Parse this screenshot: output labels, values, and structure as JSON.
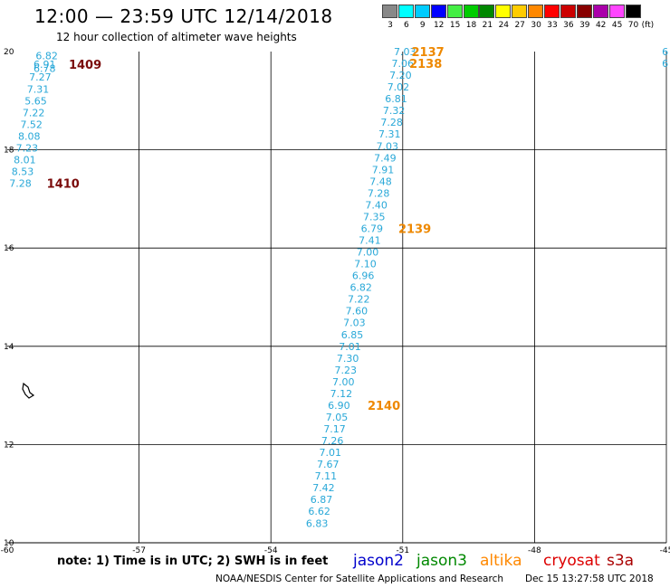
{
  "header": {
    "title": "12:00 — 23:59 UTC 12/14/2018",
    "subtitle": "12 hour collection of altimeter wave heights"
  },
  "color_scale": {
    "unit": "(ft)",
    "bins": [
      {
        "label": "3",
        "color": "#888888"
      },
      {
        "label": "6",
        "color": "#00ffff"
      },
      {
        "label": "9",
        "color": "#00ccff"
      },
      {
        "label": "12",
        "color": "#0000ff"
      },
      {
        "label": "15",
        "color": "#44ee44"
      },
      {
        "label": "18",
        "color": "#00cc00"
      },
      {
        "label": "21",
        "color": "#008800"
      },
      {
        "label": "24",
        "color": "#ffff00"
      },
      {
        "label": "27",
        "color": "#ffcc00"
      },
      {
        "label": "30",
        "color": "#ff8800"
      },
      {
        "label": "33",
        "color": "#ff0000"
      },
      {
        "label": "36",
        "color": "#cc0000"
      },
      {
        "label": "39",
        "color": "#880000"
      },
      {
        "label": "42",
        "color": "#aa00aa"
      },
      {
        "label": "45",
        "color": "#ff44ff"
      },
      {
        "label": "70",
        "color": "#000000"
      }
    ]
  },
  "map": {
    "lon_range": [
      -60,
      -45
    ],
    "lat_range": [
      10,
      20
    ],
    "lon_ticks": [
      "-60",
      "-57",
      "-54",
      "-51",
      "-48",
      "-45"
    ],
    "lat_ticks": [
      "20",
      "18",
      "16",
      "14",
      "12",
      "10"
    ],
    "grid_lons": [
      -57,
      -54,
      -51,
      -48,
      -45
    ],
    "grid_lats": [
      18,
      16,
      14,
      12
    ],
    "value_color": "#29a8d8",
    "tracks": [
      {
        "points": [
          {
            "lon": -59.1,
            "lat": 19.92,
            "v": "6.82"
          },
          {
            "lon": -59.15,
            "lat": 19.74,
            "v": "6.91"
          },
          {
            "lon": -59.15,
            "lat": 19.66,
            "v": "6.78"
          },
          {
            "lon": -59.25,
            "lat": 19.48,
            "v": "7.27"
          },
          {
            "lon": -59.3,
            "lat": 19.24,
            "v": "7.31"
          },
          {
            "lon": -59.35,
            "lat": 19.0,
            "v": "5.65"
          },
          {
            "lon": -59.4,
            "lat": 18.76,
            "v": "7.22"
          },
          {
            "lon": -59.45,
            "lat": 18.52,
            "v": "7.52"
          },
          {
            "lon": -59.5,
            "lat": 18.28,
            "v": "8.08"
          },
          {
            "lon": -59.55,
            "lat": 18.04,
            "v": "7.23"
          },
          {
            "lon": -59.6,
            "lat": 17.8,
            "v": "8.01"
          },
          {
            "lon": -59.65,
            "lat": 17.56,
            "v": "8.53"
          },
          {
            "lon": -59.7,
            "lat": 17.32,
            "v": "7.28"
          }
        ]
      },
      {
        "points": [
          {
            "lon": -50.95,
            "lat": 20.0,
            "v": "7.03"
          },
          {
            "lon": -51.0,
            "lat": 19.76,
            "v": "7.06"
          },
          {
            "lon": -51.05,
            "lat": 19.52,
            "v": "7.20"
          },
          {
            "lon": -51.1,
            "lat": 19.28,
            "v": "7.02"
          },
          {
            "lon": -51.15,
            "lat": 19.04,
            "v": "6.81"
          },
          {
            "lon": -51.2,
            "lat": 18.8,
            "v": "7.32"
          },
          {
            "lon": -51.25,
            "lat": 18.56,
            "v": "7.28"
          },
          {
            "lon": -51.3,
            "lat": 18.32,
            "v": "7.31"
          },
          {
            "lon": -51.35,
            "lat": 18.08,
            "v": "7.03"
          },
          {
            "lon": -51.4,
            "lat": 17.84,
            "v": "7.49"
          },
          {
            "lon": -51.45,
            "lat": 17.6,
            "v": "7.91"
          },
          {
            "lon": -51.5,
            "lat": 17.36,
            "v": "7.48"
          },
          {
            "lon": -51.55,
            "lat": 17.12,
            "v": "7.28"
          },
          {
            "lon": -51.6,
            "lat": 16.88,
            "v": "7.40"
          },
          {
            "lon": -51.65,
            "lat": 16.64,
            "v": "7.35"
          },
          {
            "lon": -51.7,
            "lat": 16.4,
            "v": "6.79"
          },
          {
            "lon": -51.75,
            "lat": 16.16,
            "v": "7.41"
          },
          {
            "lon": -51.8,
            "lat": 15.92,
            "v": "7.00"
          },
          {
            "lon": -51.85,
            "lat": 15.68,
            "v": "7.10"
          },
          {
            "lon": -51.9,
            "lat": 15.44,
            "v": "6.96"
          },
          {
            "lon": -51.95,
            "lat": 15.2,
            "v": "6.82"
          },
          {
            "lon": -52.0,
            "lat": 14.96,
            "v": "7.22"
          },
          {
            "lon": -52.05,
            "lat": 14.72,
            "v": "7.60"
          },
          {
            "lon": -52.1,
            "lat": 14.48,
            "v": "7.03"
          },
          {
            "lon": -52.15,
            "lat": 14.24,
            "v": "6.85"
          },
          {
            "lon": -52.2,
            "lat": 14.0,
            "v": "7.01"
          },
          {
            "lon": -52.25,
            "lat": 13.76,
            "v": "7.30"
          },
          {
            "lon": -52.3,
            "lat": 13.52,
            "v": "7.23"
          },
          {
            "lon": -52.35,
            "lat": 13.28,
            "v": "7.00"
          },
          {
            "lon": -52.4,
            "lat": 13.04,
            "v": "7.12"
          },
          {
            "lon": -52.45,
            "lat": 12.8,
            "v": "6.90"
          },
          {
            "lon": -52.5,
            "lat": 12.56,
            "v": "7.05"
          },
          {
            "lon": -52.55,
            "lat": 12.32,
            "v": "7.17"
          },
          {
            "lon": -52.6,
            "lat": 12.08,
            "v": "7.26"
          },
          {
            "lon": -52.65,
            "lat": 11.84,
            "v": "7.01"
          },
          {
            "lon": -52.7,
            "lat": 11.6,
            "v": "7.67"
          },
          {
            "lon": -52.75,
            "lat": 11.36,
            "v": "7.11"
          },
          {
            "lon": -52.8,
            "lat": 11.12,
            "v": "7.42"
          },
          {
            "lon": -52.85,
            "lat": 10.88,
            "v": "6.87"
          },
          {
            "lon": -52.9,
            "lat": 10.64,
            "v": "6.62"
          },
          {
            "lon": -52.95,
            "lat": 10.4,
            "v": "6.83"
          }
        ]
      }
    ],
    "pass_labels": [
      {
        "text": "1409",
        "lon": -58.6,
        "lat": 19.74,
        "color": "#7a0a0a"
      },
      {
        "text": "1410",
        "lon": -59.1,
        "lat": 17.32,
        "color": "#7a0a0a"
      },
      {
        "text": "2137",
        "lon": -50.8,
        "lat": 20.0,
        "color": "#ee8800"
      },
      {
        "text": "2138",
        "lon": -50.85,
        "lat": 19.76,
        "color": "#ee8800"
      },
      {
        "text": "2139",
        "lon": -51.1,
        "lat": 16.4,
        "color": "#ee8800"
      },
      {
        "text": "2140",
        "lon": -51.8,
        "lat": 12.8,
        "color": "#ee8800"
      }
    ],
    "edge_values": [
      {
        "v": "6",
        "lon": -45.1,
        "lat": 20.0
      },
      {
        "v": "6",
        "lon": -45.1,
        "lat": 19.76
      }
    ]
  },
  "footer": {
    "note": "note:  1) Time is in UTC;  2) SWH is in feet",
    "satellites": [
      {
        "name": "jason2",
        "color": "#0000cc"
      },
      {
        "name": "jason3",
        "color": "#008800"
      },
      {
        "name": "altika",
        "color": "#ff8800"
      },
      {
        "name": "cryosat",
        "color": "#dd0000"
      },
      {
        "name": "s3a",
        "color": "#aa0000"
      }
    ],
    "credit": "NOAA/NESDIS Center for Satellite Applications and Research",
    "timestamp": "Dec 15 13:27:58 UTC 2018"
  }
}
